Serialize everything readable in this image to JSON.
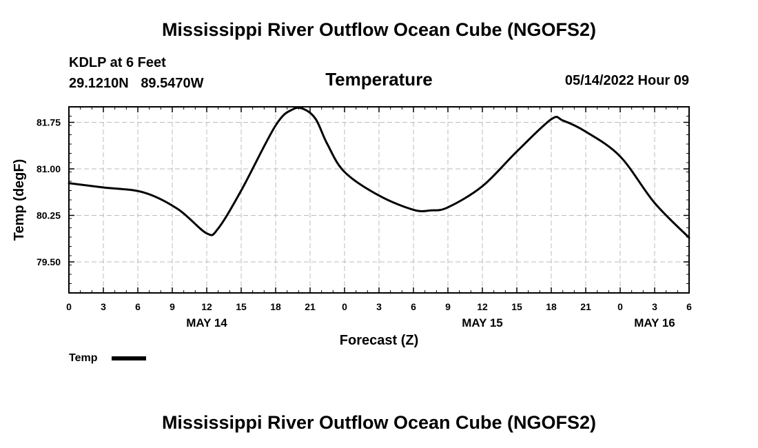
{
  "page": {
    "main_title": "Mississippi River Outflow Ocean Cube (NGOFS2)",
    "footer_title": "Mississippi River Outflow Ocean Cube (NGOFS2)",
    "station_name": "KDLP at 6 Feet",
    "latitude": "29.1210N",
    "longitude": "89.5470W",
    "timestamp": "05/14/2022 Hour 09"
  },
  "chart_data": {
    "type": "line",
    "title": "Temperature",
    "xlabel": "Forecast (Z)",
    "ylabel": "Temp (degF)",
    "xlim": [
      0,
      54
    ],
    "ylim": [
      79.0,
      82.0
    ],
    "grid": true,
    "yticks": [
      79.5,
      80.25,
      81.0,
      81.75
    ],
    "ytick_labels": [
      "79.50",
      "80.25",
      "81.00",
      "81.75"
    ],
    "xticks": [
      0,
      3,
      6,
      9,
      12,
      15,
      18,
      21,
      24,
      27,
      30,
      33,
      36,
      39,
      42,
      45,
      48,
      51,
      54
    ],
    "xtick_labels": [
      "0",
      "3",
      "6",
      "9",
      "12",
      "15",
      "18",
      "21",
      "0",
      "3",
      "6",
      "9",
      "12",
      "15",
      "18",
      "21",
      "0",
      "3",
      "6"
    ],
    "date_labels": [
      {
        "hour": 12,
        "label": "MAY 14"
      },
      {
        "hour": 36,
        "label": "MAY 15"
      },
      {
        "hour": 51,
        "label": "MAY 16"
      }
    ],
    "legend": {
      "position": "bottom-left",
      "entries": [
        "Temp"
      ]
    },
    "series": [
      {
        "name": "Temp",
        "color": "#000000",
        "x": [
          0,
          3,
          6.5,
          9.5,
          12,
          13,
          15,
          18,
          19.5,
          20.5,
          21.5,
          22.5,
          24,
          27,
          30,
          31.5,
          33,
          36,
          39,
          42,
          43,
          45,
          48,
          51,
          54
        ],
        "y": [
          80.77,
          80.7,
          80.62,
          80.35,
          79.96,
          80.04,
          80.65,
          81.7,
          81.96,
          81.96,
          81.8,
          81.4,
          80.95,
          80.57,
          80.34,
          80.33,
          80.38,
          80.72,
          81.28,
          81.8,
          81.78,
          81.6,
          81.2,
          80.45,
          79.89
        ]
      }
    ]
  }
}
